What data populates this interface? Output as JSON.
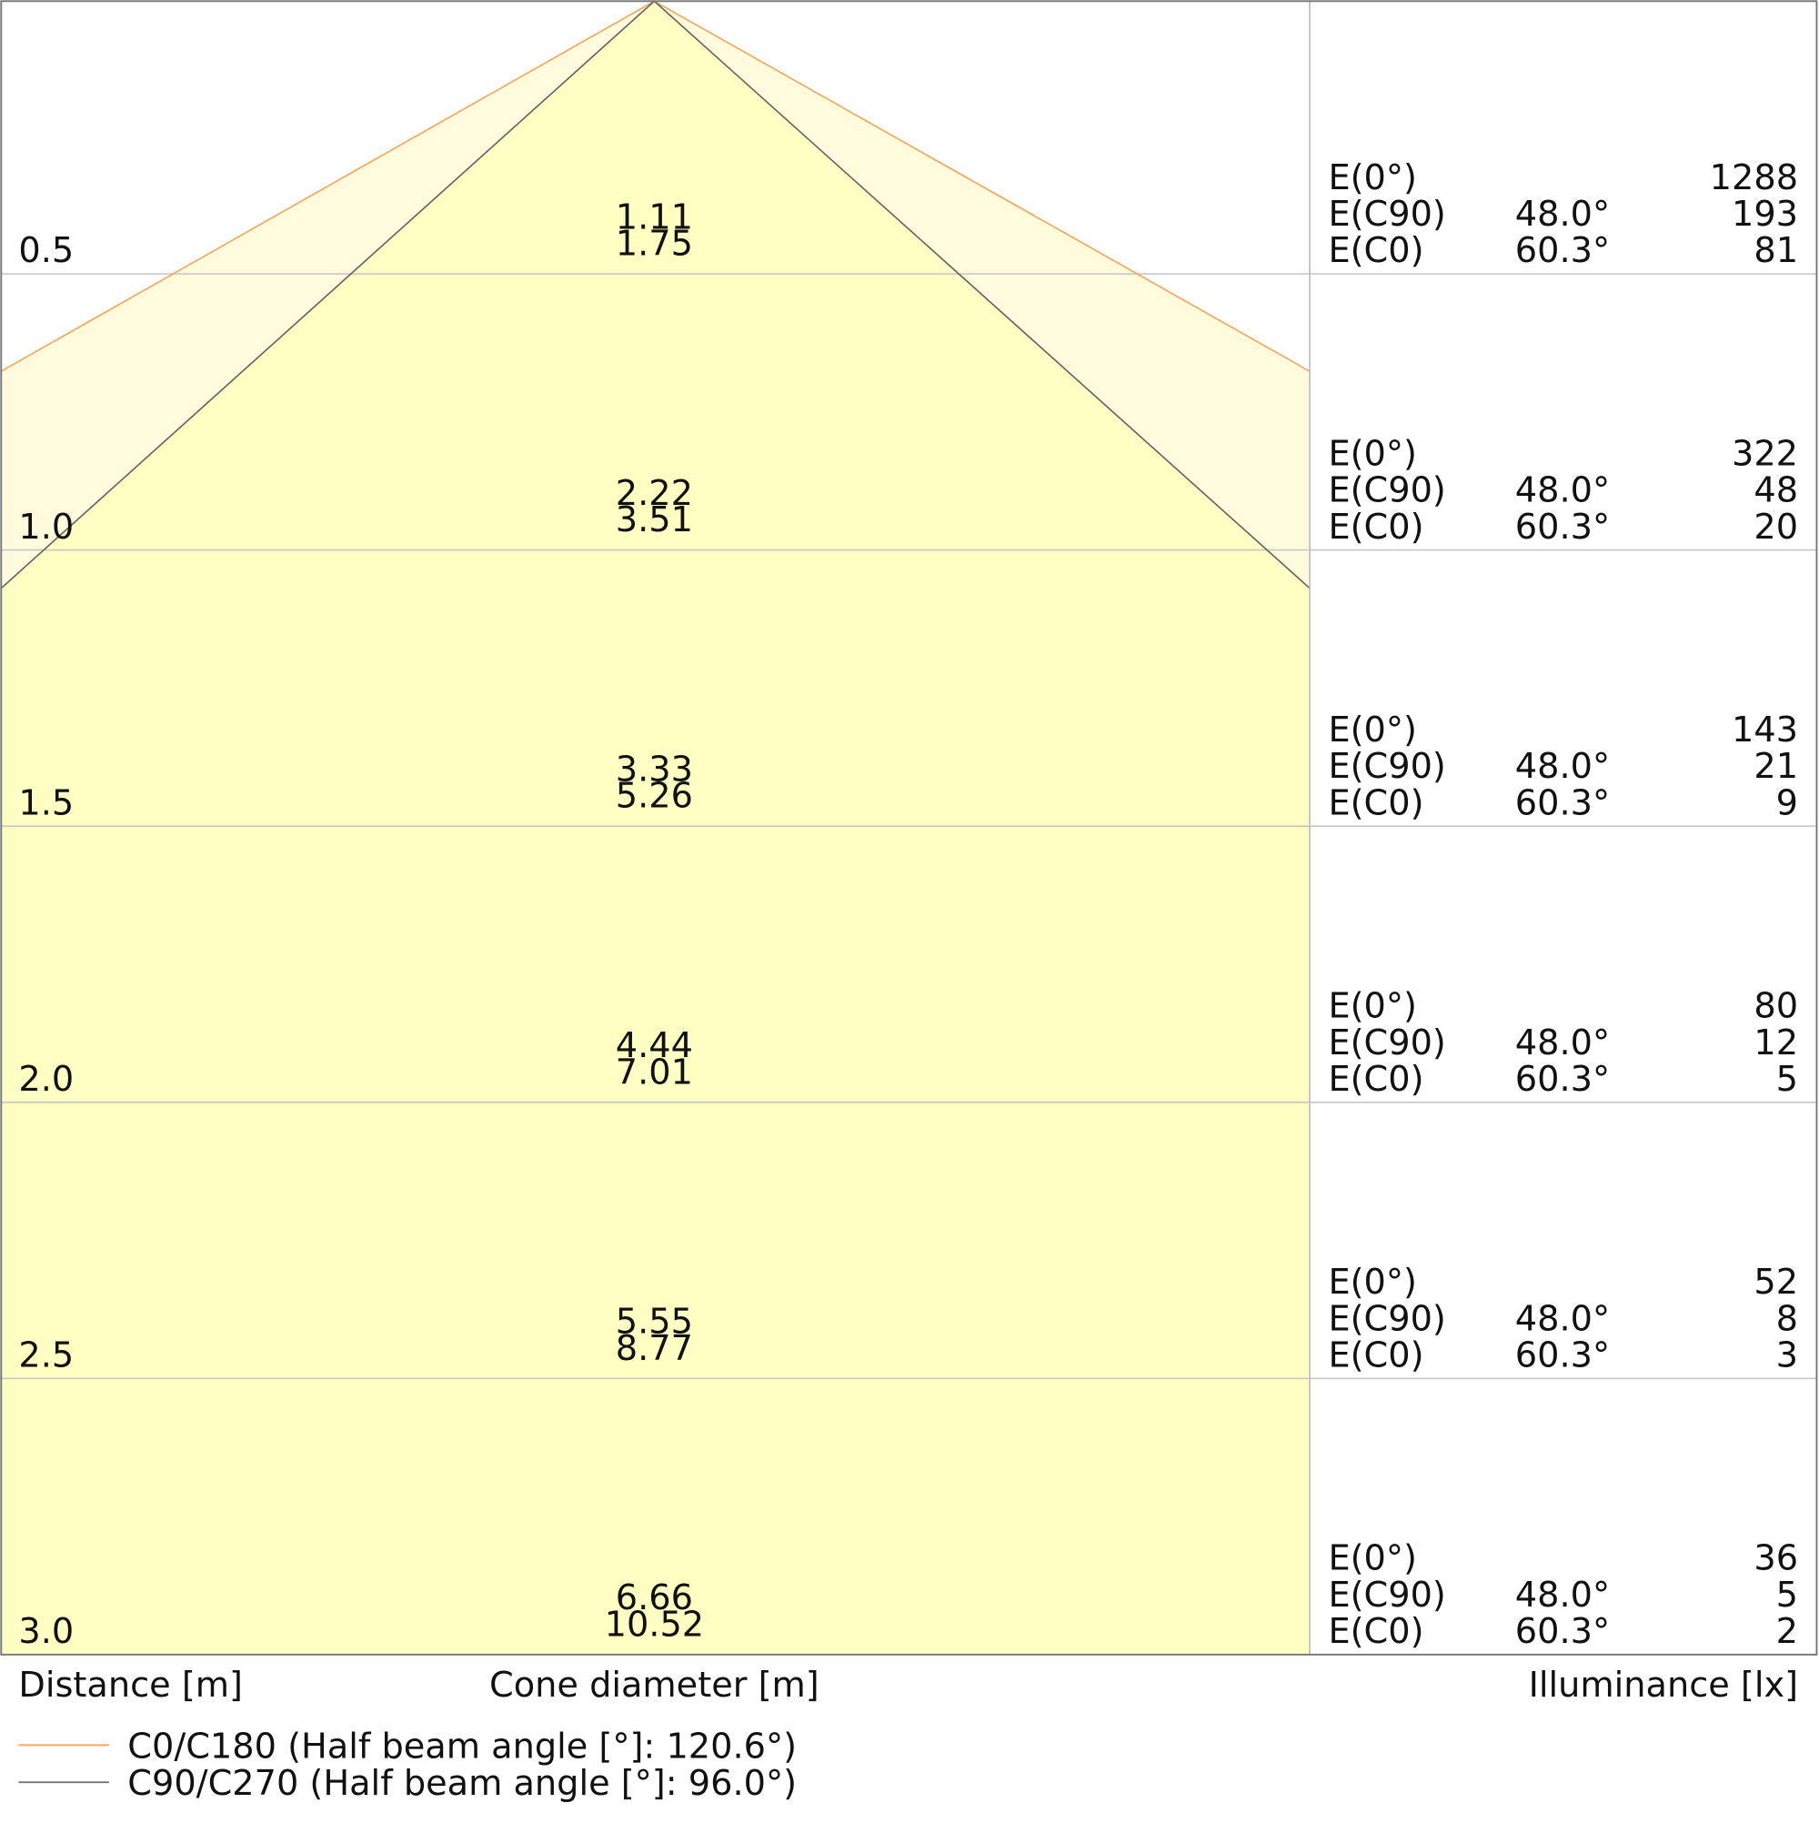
{
  "rows": [
    {
      "distance": "0.5",
      "cone": [
        "1.11",
        "1.75"
      ],
      "illuminance": [
        {
          "label": "E(0°)",
          "value": "1288"
        },
        {
          "label": "E(C90)",
          "angle": "48.0°",
          "value": "193"
        },
        {
          "label": "E(C0)",
          "angle": "60.3°",
          "value": "81"
        }
      ]
    },
    {
      "distance": "1.0",
      "cone": [
        "2.22",
        "3.51"
      ],
      "illuminance": [
        {
          "label": "E(0°)",
          "value": "322"
        },
        {
          "label": "E(C90)",
          "angle": "48.0°",
          "value": "48"
        },
        {
          "label": "E(C0)",
          "angle": "60.3°",
          "value": "20"
        }
      ]
    },
    {
      "distance": "1.5",
      "cone": [
        "3.33",
        "5.26"
      ],
      "illuminance": [
        {
          "label": "E(0°)",
          "value": "143"
        },
        {
          "label": "E(C90)",
          "angle": "48.0°",
          "value": "21"
        },
        {
          "label": "E(C0)",
          "angle": "60.3°",
          "value": "9"
        }
      ]
    },
    {
      "distance": "2.0",
      "cone": [
        "4.44",
        "7.01"
      ],
      "illuminance": [
        {
          "label": "E(0°)",
          "value": "80"
        },
        {
          "label": "E(C90)",
          "angle": "48.0°",
          "value": "12"
        },
        {
          "label": "E(C0)",
          "angle": "60.3°",
          "value": "5"
        }
      ]
    },
    {
      "distance": "2.5",
      "cone": [
        "5.55",
        "8.77"
      ],
      "illuminance": [
        {
          "label": "E(0°)",
          "value": "52"
        },
        {
          "label": "E(C90)",
          "angle": "48.0°",
          "value": "8"
        },
        {
          "label": "E(C0)",
          "angle": "60.3°",
          "value": "3"
        }
      ]
    },
    {
      "distance": "3.0",
      "cone": [
        "6.66",
        "10.52"
      ],
      "illuminance": [
        {
          "label": "E(0°)",
          "value": "36"
        },
        {
          "label": "E(C90)",
          "angle": "48.0°",
          "value": "5"
        },
        {
          "label": "E(C0)",
          "angle": "60.3°",
          "value": "2"
        }
      ]
    }
  ],
  "axis_labels": {
    "distance": "Distance [m]",
    "cone": "Cone diameter [m]",
    "illuminance": "Illuminance [lx]"
  },
  "legend": [
    {
      "label": "C0/C180 (Half beam angle [°]: 120.6°)",
      "color": "#f5a65b"
    },
    {
      "label": "C90/C270 (Half beam angle [°]: 96.0°)",
      "color": "#777777"
    }
  ]
}
